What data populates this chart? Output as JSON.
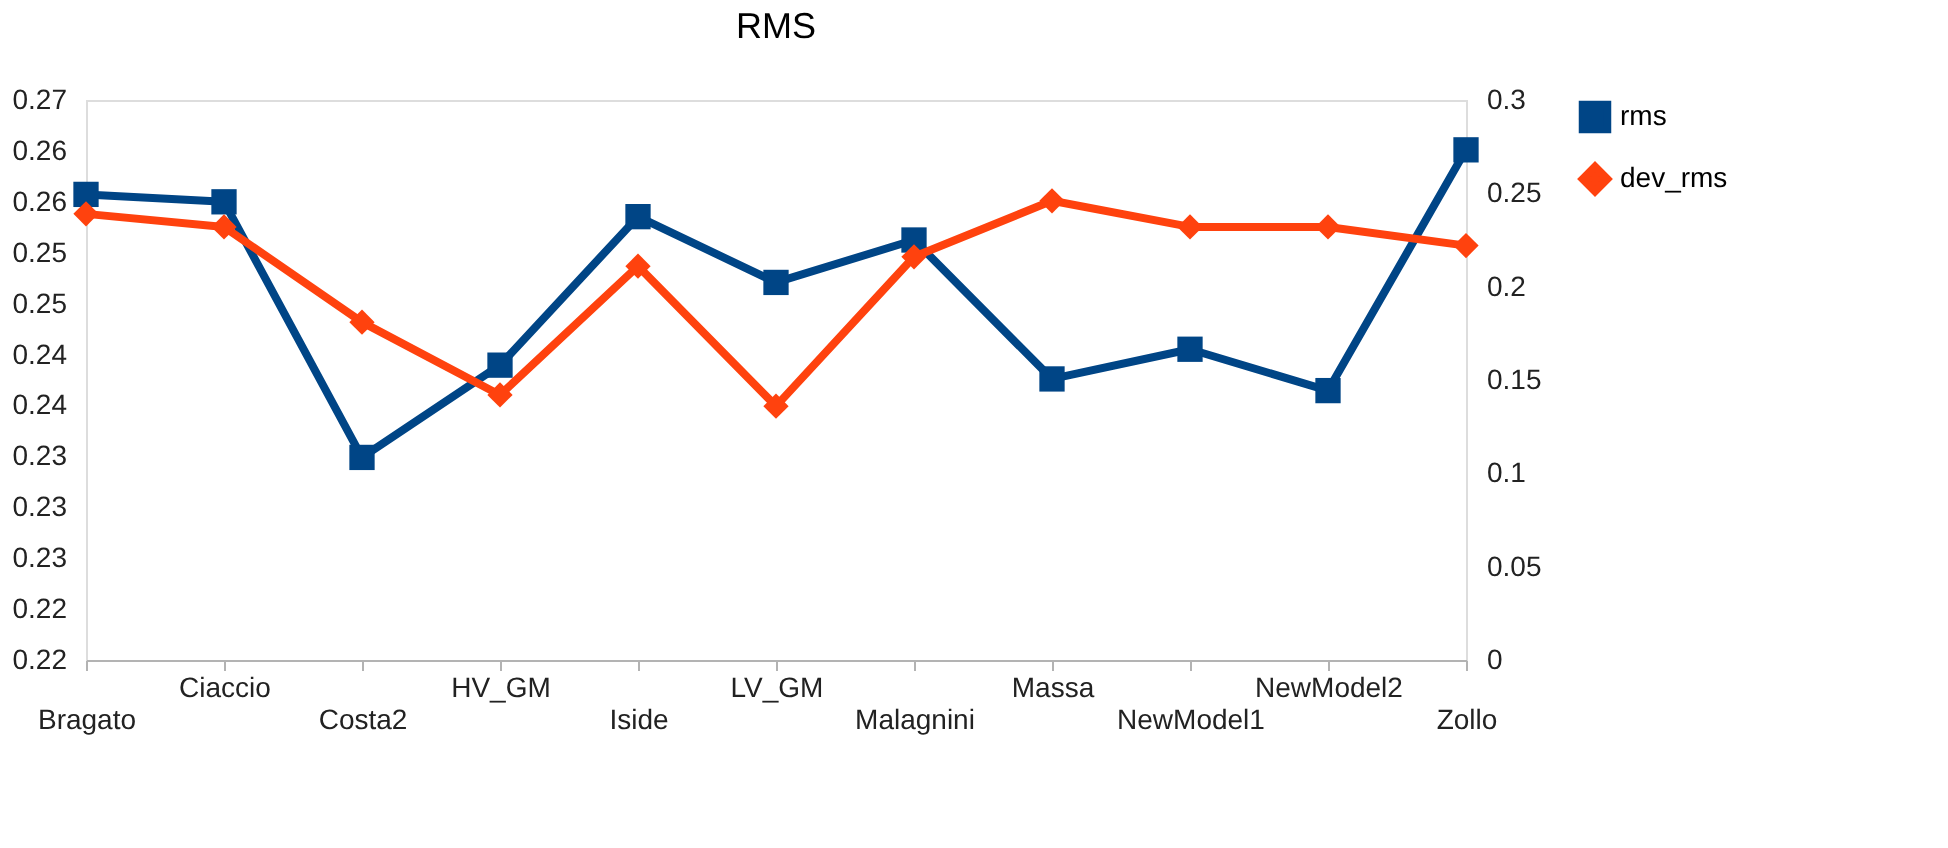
{
  "chart_data": {
    "type": "line",
    "title": "RMS",
    "categories": [
      "Bragato",
      "Ciaccio",
      "Costa2",
      "HV_GM",
      "Iside",
      "LV_GM",
      "Malagnini",
      "Massa",
      "NewModel1",
      "NewModel2",
      "Zollo"
    ],
    "series": [
      {
        "name": "rms",
        "color": "#004586",
        "marker": "square",
        "values": [
          0.2594,
          0.2587,
          0.2346,
          0.2433,
          0.2573,
          0.2511,
          0.2551,
          0.242,
          0.2448,
          0.2409,
          0.2636
        ]
      },
      {
        "name": "dev_rms",
        "color": "#ff420e",
        "marker": "diamond",
        "axis": "y2",
        "values": [
          0.239,
          0.232,
          0.181,
          0.142,
          0.211,
          0.136,
          0.216,
          0.246,
          0.232,
          0.232,
          0.222
        ]
      }
    ],
    "ylim": [
      0.2155,
      0.2683
    ],
    "yticks": [
      {
        "value": 0.2155,
        "label": "0.22"
      },
      {
        "value": 0.2203,
        "label": "0.22"
      },
      {
        "value": 0.2251,
        "label": "0.23"
      },
      {
        "value": 0.2299,
        "label": "0.23"
      },
      {
        "value": 0.2347,
        "label": "0.23"
      },
      {
        "value": 0.2395,
        "label": "0.24"
      },
      {
        "value": 0.2443,
        "label": "0.24"
      },
      {
        "value": 0.2491,
        "label": "0.25"
      },
      {
        "value": 0.2539,
        "label": "0.25"
      },
      {
        "value": 0.2587,
        "label": "0.26"
      },
      {
        "value": 0.2635,
        "label": "0.26"
      },
      {
        "value": 0.2683,
        "label": "0.27"
      }
    ],
    "y2lim": [
      0,
      0.3
    ],
    "y2ticks": [
      0,
      0.05,
      0.1,
      0.15,
      0.2,
      0.25,
      0.3
    ],
    "legend": "right",
    "grid": false,
    "line_style": "solid"
  }
}
